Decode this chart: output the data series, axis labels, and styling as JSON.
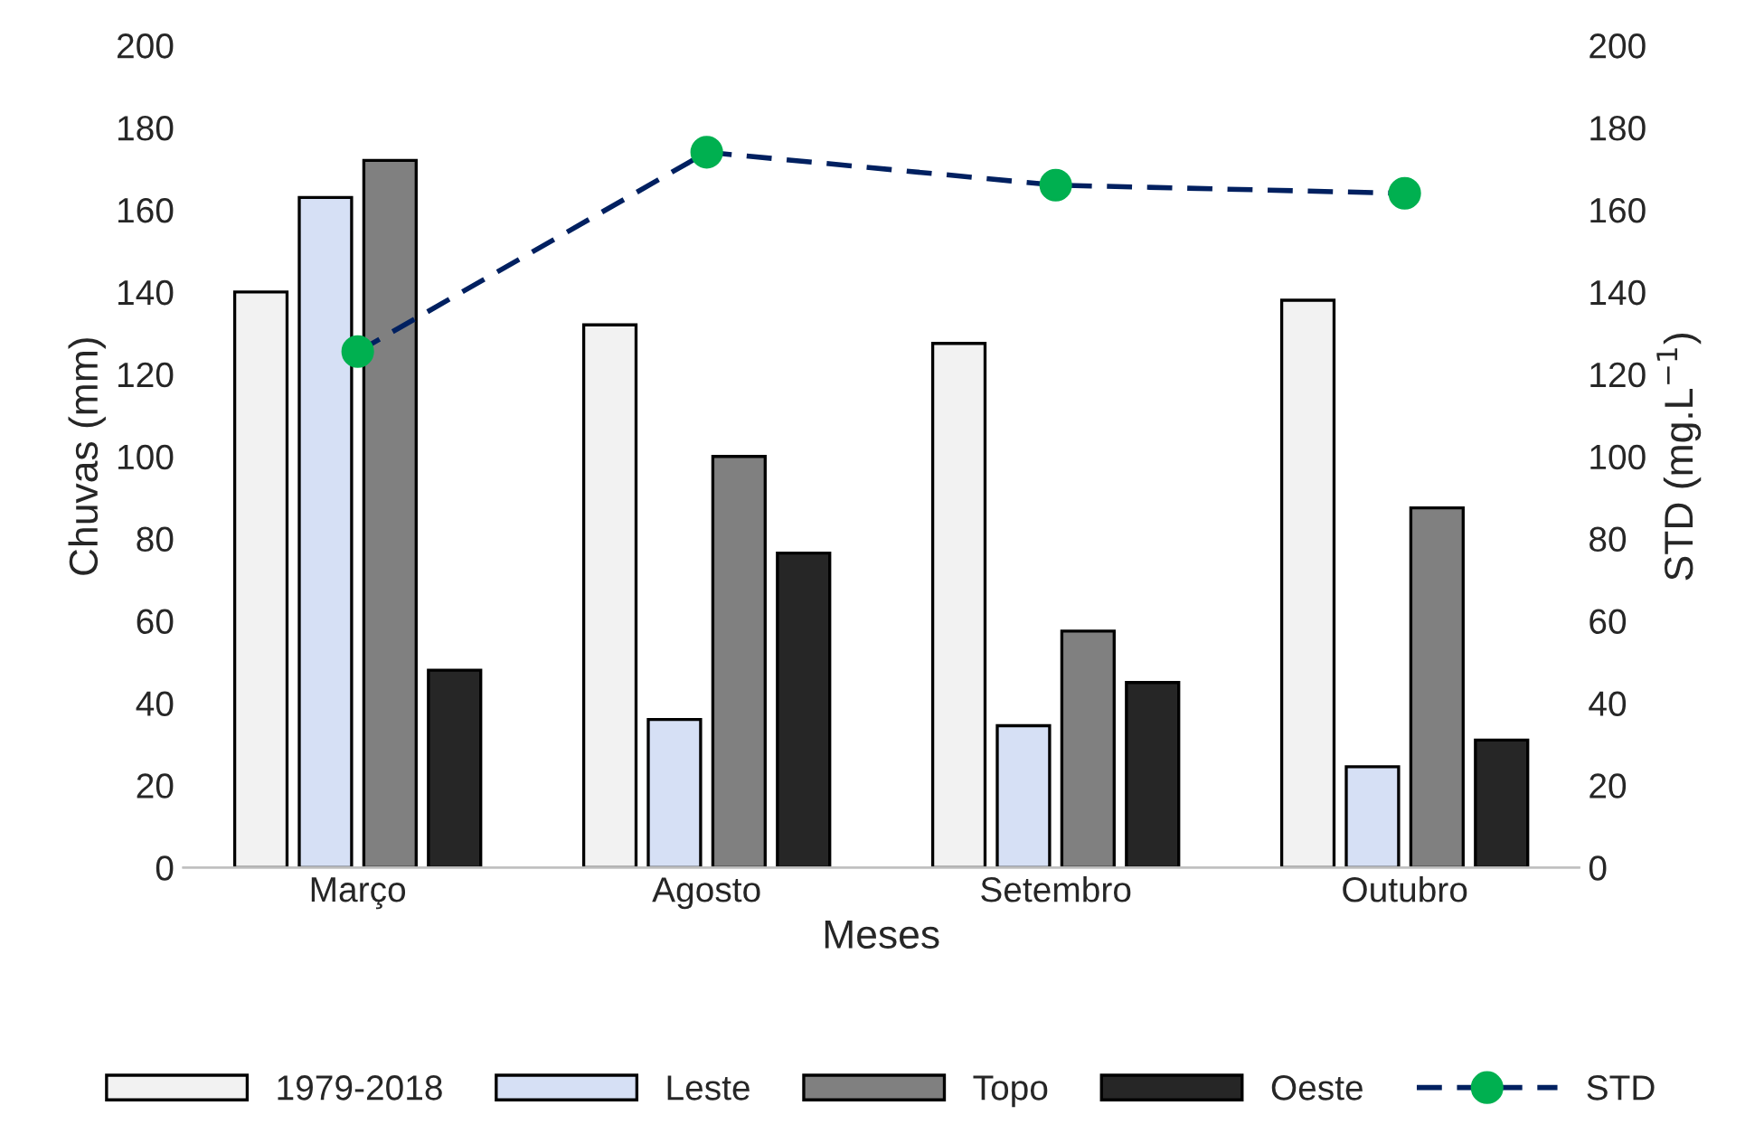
{
  "chart_data": {
    "type": "bar",
    "xlabel": "Meses",
    "ylabel": "Chuvas (mm)",
    "y2label": "STD (mg.L$^{−1}$)",
    "categories": [
      "Março",
      "Agosto",
      "Setembro",
      "Outubro"
    ],
    "series": [
      {
        "name": "1979-2018",
        "color": "#f2f2f2",
        "values": [
          140,
          132,
          127.5,
          138
        ]
      },
      {
        "name": "Leste",
        "color": "#d6e0f5",
        "values": [
          163,
          36,
          34.5,
          24.5
        ]
      },
      {
        "name": "Topo",
        "color": "#808080",
        "values": [
          172,
          100,
          57.5,
          87.5
        ]
      },
      {
        "name": "Oeste",
        "color": "#262626",
        "values": [
          48,
          76.5,
          45,
          31
        ]
      },
      {
        "name": "STD",
        "color": "#00b050",
        "type": "line",
        "axis": "y2",
        "marker": "circle",
        "line_style": "dashed",
        "values": [
          125.5,
          174,
          166,
          164
        ]
      }
    ],
    "ylim": [
      0,
      200
    ],
    "yticks": [
      0,
      20,
      40,
      60,
      80,
      100,
      120,
      140,
      160,
      180,
      200
    ],
    "y2lim": [
      0,
      200
    ],
    "y2ticks": [
      0,
      20,
      40,
      60,
      80,
      100,
      120,
      140,
      160,
      180,
      200
    ],
    "grid": false,
    "legend": "bottom"
  }
}
